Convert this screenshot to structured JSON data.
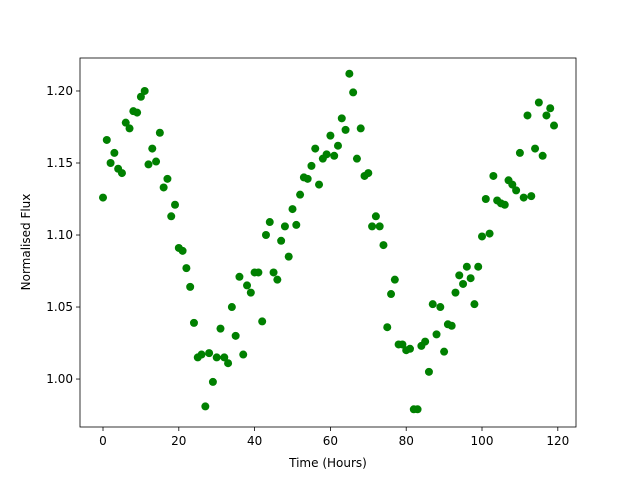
{
  "chart_data": {
    "type": "scatter",
    "x_label": "Time (Hours)",
    "y_label": "Normalised Flux",
    "color": "#008000",
    "x": [
      0,
      1,
      2,
      3,
      4,
      5,
      6,
      7,
      8,
      9,
      10,
      11,
      12,
      13,
      14,
      15,
      16,
      17,
      18,
      19,
      20,
      21,
      22,
      23,
      24,
      25,
      26,
      27,
      28,
      29,
      30,
      31,
      32,
      33,
      34,
      35,
      36,
      37,
      38,
      39,
      40,
      41,
      42,
      43,
      44,
      45,
      46,
      47,
      48,
      49,
      50,
      51,
      52,
      53,
      54,
      55,
      56,
      57,
      58,
      59,
      60,
      61,
      62,
      63,
      64,
      65,
      66,
      67,
      68,
      69,
      70,
      71,
      72,
      73,
      74,
      75,
      76,
      77,
      78,
      79,
      80,
      81,
      82,
      83,
      84,
      85,
      86,
      87,
      88,
      89,
      90,
      91,
      92,
      93,
      94,
      95,
      96,
      97,
      98,
      99,
      100,
      101,
      102,
      103,
      104,
      105,
      106,
      107,
      108,
      109,
      110,
      111,
      112,
      113,
      114,
      115,
      116,
      117,
      118,
      119
    ],
    "values": [
      1.126,
      1.166,
      1.15,
      1.157,
      1.146,
      1.143,
      1.178,
      1.174,
      1.186,
      1.185,
      1.196,
      1.2,
      1.149,
      1.16,
      1.151,
      1.171,
      1.133,
      1.139,
      1.113,
      1.121,
      1.091,
      1.089,
      1.077,
      1.064,
      1.039,
      1.015,
      1.017,
      0.981,
      1.018,
      0.998,
      1.015,
      1.035,
      1.015,
      1.011,
      1.05,
      1.03,
      1.071,
      1.017,
      1.065,
      1.06,
      1.074,
      1.074,
      1.04,
      1.1,
      1.109,
      1.074,
      1.069,
      1.096,
      1.106,
      1.085,
      1.118,
      1.107,
      1.128,
      1.14,
      1.139,
      1.148,
      1.16,
      1.135,
      1.153,
      1.156,
      1.169,
      1.155,
      1.162,
      1.181,
      1.173,
      1.212,
      1.199,
      1.153,
      1.174,
      1.141,
      1.143,
      1.106,
      1.113,
      1.106,
      1.093,
      1.036,
      1.059,
      1.069,
      1.024,
      1.024,
      1.02,
      1.021,
      0.979,
      0.979,
      1.023,
      1.026,
      1.005,
      1.052,
      1.031,
      1.05,
      1.019,
      1.038,
      1.037,
      1.06,
      1.072,
      1.066,
      1.078,
      1.07,
      1.052,
      1.078,
      1.099,
      1.125,
      1.101,
      1.141,
      1.124,
      1.122,
      1.121,
      1.138,
      1.135,
      1.131,
      1.157,
      1.126,
      1.183,
      1.127,
      1.16,
      1.192,
      1.155,
      1.183,
      1.188,
      1.176
    ],
    "xlim": [
      -6.07,
      124.8
    ],
    "ylim": [
      0.9667,
      1.2229
    ],
    "xticks": [
      0,
      20,
      40,
      60,
      80,
      100,
      120
    ],
    "yticks": [
      {
        "value": 1,
        "label": "1.00"
      },
      1.05,
      {
        "value": 1.1,
        "label": "1.10"
      },
      1.15,
      {
        "value": 1.2,
        "label": "1.20"
      }
    ]
  }
}
